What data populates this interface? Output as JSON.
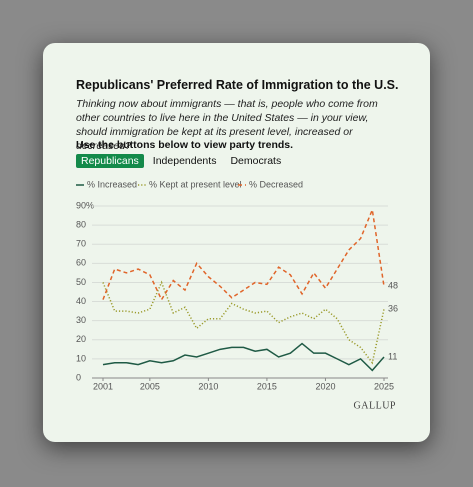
{
  "chart_data": {
    "type": "line",
    "title": "Republicans' Preferred Rate of Immigration to the U.S.",
    "subtitle": "Thinking now about immigrants — that is, people who come from other countries to live here in the United States — in your view, should immigration be kept at its present level, increased or decreased?",
    "x": [
      2001,
      2002,
      2003,
      2004,
      2005,
      2006,
      2007,
      2008,
      2009,
      2010,
      2011,
      2012,
      2013,
      2014,
      2015,
      2016,
      2017,
      2018,
      2019,
      2020,
      2021,
      2022,
      2023,
      2024,
      2025
    ],
    "series": [
      {
        "name": "% Increased",
        "color": "#1f5a45",
        "line_style": "solid",
        "values": [
          7,
          8,
          8,
          7,
          9,
          8,
          9,
          12,
          11,
          13,
          15,
          16,
          16,
          14,
          15,
          11,
          13,
          18,
          13,
          13,
          10,
          7,
          10,
          4,
          11
        ]
      },
      {
        "name": "% Kept at present level",
        "color": "#9a9a2a",
        "line_style": "dotted",
        "values": [
          50,
          35,
          35,
          34,
          36,
          50,
          34,
          37,
          26,
          31,
          31,
          39,
          36,
          34,
          35,
          29,
          32,
          34,
          31,
          36,
          31,
          20,
          16,
          8,
          36
        ]
      },
      {
        "name": "% Decreased",
        "color": "#e0652a",
        "line_style": "dashed",
        "values": [
          41,
          57,
          55,
          57,
          54,
          41,
          51,
          46,
          60,
          53,
          48,
          42,
          46,
          50,
          49,
          58,
          54,
          44,
          55,
          47,
          57,
          67,
          73,
          88,
          48
        ]
      }
    ],
    "xlim": [
      2001,
      2025
    ],
    "xticks": [
      2001,
      2005,
      2010,
      2015,
      2020,
      2025
    ],
    "ylim": [
      0,
      90
    ],
    "yticks": [
      0,
      10,
      20,
      30,
      40,
      50,
      60,
      70,
      80,
      {
        "value": 90,
        "label": "90%"
      }
    ],
    "grid": true
  },
  "controls": {
    "instruction": "Use the buttons below to view party trends.",
    "buttons": [
      "Republicans",
      "Independents",
      "Democrats"
    ],
    "selected": 0
  },
  "source": "GALLUP"
}
